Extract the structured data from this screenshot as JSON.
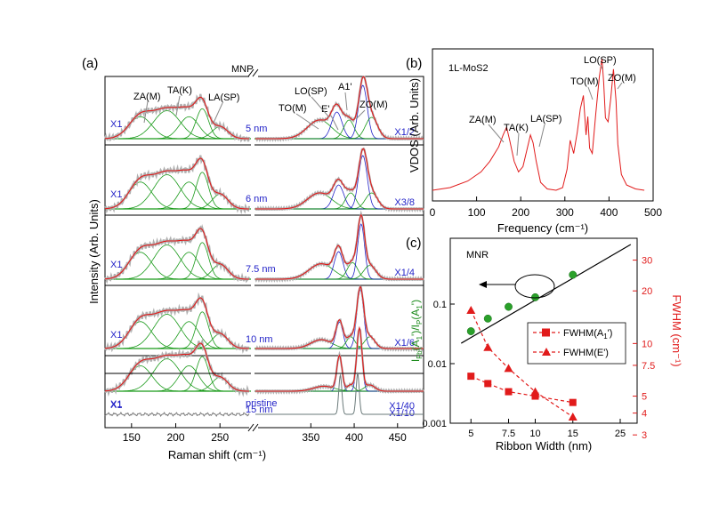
{
  "chart_data": [
    {
      "panel": "(a)",
      "type": "line",
      "sample_label": "MNR",
      "xlabel": "Raman shift (cm⁻¹)",
      "ylabel": "Intensity (Arb. Units)",
      "xlim": [
        120,
        480
      ],
      "x_ticks": [
        "150",
        "200",
        "250",
        "350",
        "400",
        "450"
      ],
      "peak_labels": [
        "ZA(M)",
        "TA(K)",
        "LA(SP)",
        "TO(M)",
        "LO(SP)",
        "E'",
        "A1'",
        "ZO(M)"
      ],
      "rows": [
        {
          "width": "5 nm",
          "left_scale": "X1",
          "right_scale": "X1/2"
        },
        {
          "width": "6 nm",
          "left_scale": "X1",
          "right_scale": "X3/8"
        },
        {
          "width": "7.5 nm",
          "left_scale": "X1",
          "right_scale": "X1/4"
        },
        {
          "width": "10 nm",
          "left_scale": "X1",
          "right_scale": "X1/6"
        },
        {
          "width": "15 nm",
          "left_scale": "X1",
          "right_scale": "X1/10"
        },
        {
          "width": "pristine",
          "left_scale": "X1",
          "right_scale": "X1/40"
        }
      ],
      "peaks_cm": [
        160,
        188,
        228,
        250,
        360,
        382,
        408,
        418
      ]
    },
    {
      "panel": "(b)",
      "type": "line",
      "sample_label": "1L-MoS2",
      "xlabel": "Frequency (cm⁻¹)",
      "ylabel": "VDOS (Arb. Units)",
      "xlim": [
        0,
        500
      ],
      "x_ticks": [
        "0",
        "100",
        "200",
        "300",
        "400",
        "500"
      ],
      "peak_labels": [
        "ZA(M)",
        "TA(K)",
        "LA(SP)",
        "TO(M)",
        "LO(SP)",
        "ZO(M)"
      ],
      "x": [
        0,
        40,
        80,
        110,
        130,
        150,
        160,
        168,
        175,
        185,
        195,
        205,
        215,
        222,
        228,
        235,
        245,
        260,
        280,
        295,
        305,
        312,
        320,
        328,
        335,
        342,
        348,
        352,
        356,
        362,
        370,
        378,
        384,
        388,
        392,
        398,
        404,
        410,
        416,
        420,
        428,
        440,
        460,
        480
      ],
      "y": [
        0,
        0.02,
        0.07,
        0.14,
        0.22,
        0.33,
        0.42,
        0.48,
        0.38,
        0.22,
        0.14,
        0.18,
        0.32,
        0.42,
        0.36,
        0.22,
        0.06,
        0.01,
        0,
        0.02,
        0.16,
        0.38,
        0.28,
        0.44,
        0.62,
        0.72,
        0.42,
        0.56,
        0.32,
        0.28,
        0.58,
        0.86,
        1.0,
        0.82,
        0.55,
        0.52,
        0.7,
        0.92,
        0.68,
        0.35,
        0.12,
        0.04,
        0.01,
        0
      ]
    },
    {
      "panel": "(c)",
      "type": "line",
      "sample_label": "MNR",
      "xlabel": "Ribbon Width (nm)",
      "ylabel_left": "I_Fb(A1')/I_P(A1')",
      "ylabel_right": "FWHM (cm⁻¹)",
      "x_ticks": [
        "5",
        "7.5",
        "10",
        "15",
        "25"
      ],
      "y_left_ticks": [
        "0.001",
        "0.01",
        "0.1"
      ],
      "y_right_ticks": [
        "3",
        "4",
        "5",
        "7.5",
        "10",
        "20",
        "30"
      ],
      "ratio_x": [
        5,
        6,
        7.5,
        10,
        15
      ],
      "ratio_values": [
        0.035,
        0.057,
        0.09,
        0.13,
        0.31
      ],
      "fit_line": {
        "x": [
          4.5,
          28
        ],
        "y": [
          0.022,
          1.0
        ]
      },
      "series": [
        {
          "name": "FWHM(A1')",
          "marker": "square",
          "x": [
            5,
            6,
            7.5,
            10,
            15
          ],
          "values": [
            6.5,
            5.9,
            5.3,
            5.0,
            4.6
          ]
        },
        {
          "name": "FWHM(E')",
          "marker": "triangle",
          "x": [
            5,
            6,
            7.5,
            10,
            15
          ],
          "values": [
            15.5,
            9.5,
            7.2,
            5.3,
            3.8
          ]
        }
      ]
    }
  ],
  "legend": {
    "a1": "FWHM(A",
    "a1_sub": "1",
    "a1_sup": "'",
    "e": "FWHM(E')"
  },
  "colors": {
    "data": "#9a9a9a",
    "fit": "#e11b1b",
    "green": "#1a9a1a",
    "blue": "#2323c8",
    "right_axis": "#e11b1b",
    "left_axis": "#1a8a1a"
  }
}
